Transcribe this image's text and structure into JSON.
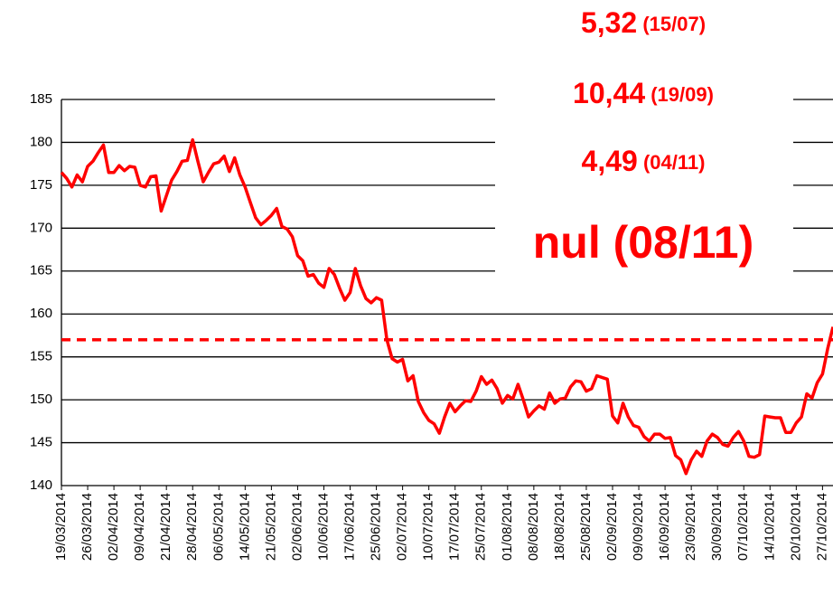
{
  "chart_data": {
    "type": "line",
    "categories": [
      "19/03/2014",
      null,
      null,
      null,
      null,
      "26/03/2014",
      null,
      null,
      null,
      null,
      "02/04/2014",
      null,
      null,
      null,
      null,
      "09/04/2014",
      null,
      null,
      null,
      null,
      "21/04/2014",
      null,
      null,
      null,
      null,
      "28/04/2014",
      null,
      null,
      null,
      null,
      "06/05/2014",
      null,
      null,
      null,
      null,
      "14/05/2014",
      null,
      null,
      null,
      null,
      "21/05/2014",
      null,
      null,
      null,
      null,
      "02/06/2014",
      null,
      null,
      null,
      null,
      "10/06/2014",
      null,
      null,
      null,
      null,
      "17/06/2014",
      null,
      null,
      null,
      null,
      "25/06/2014",
      null,
      null,
      null,
      null,
      "02/07/2014",
      null,
      null,
      null,
      null,
      "10/07/2014",
      null,
      null,
      null,
      null,
      "17/07/2014",
      null,
      null,
      null,
      null,
      "25/07/2014",
      null,
      null,
      null,
      null,
      "01/08/2014",
      null,
      null,
      null,
      null,
      "08/08/2014",
      null,
      null,
      null,
      null,
      "18/08/2014",
      null,
      null,
      null,
      null,
      "25/08/2014",
      null,
      null,
      null,
      null,
      "02/09/2014",
      null,
      null,
      null,
      null,
      "09/09/2014",
      null,
      null,
      null,
      null,
      "16/09/2014",
      null,
      null,
      null,
      null,
      "23/09/2014",
      null,
      null,
      null,
      null,
      "30/09/2014",
      null,
      null,
      null,
      null,
      "07/10/2014",
      null,
      null,
      null,
      null,
      "14/10/2014",
      null,
      null,
      null,
      null,
      "20/10/2014",
      null,
      null,
      null,
      null,
      "27/10/2014",
      null,
      null
    ],
    "series": [
      {
        "color": "#ff0000",
        "values": [
          176.5,
          175.8,
          174.8,
          176.2,
          175.4,
          177.2,
          177.8,
          178.8,
          179.7,
          176.5,
          176.5,
          177.3,
          176.7,
          177.2,
          177.1,
          175.0,
          174.8,
          176.0,
          176.1,
          172.0,
          173.8,
          175.6,
          176.6,
          177.8,
          177.9,
          180.3,
          177.8,
          175.4,
          176.5,
          177.5,
          177.7,
          178.4,
          176.6,
          178.2,
          176.2,
          174.8,
          173.0,
          171.2,
          170.4,
          170.9,
          171.5,
          172.3,
          170.2,
          169.9,
          169.0,
          166.8,
          166.2,
          164.4,
          164.6,
          163.6,
          163.1,
          165.3,
          164.6,
          163.0,
          161.6,
          162.5,
          165.3,
          163.3,
          161.8,
          161.3,
          161.9,
          161.6,
          157.0,
          154.8,
          154.4,
          154.7,
          152.2,
          152.8,
          149.8,
          148.5,
          147.6,
          147.2,
          146.1,
          148.0,
          149.6,
          148.6,
          149.3,
          149.9,
          149.8,
          151.0,
          152.7,
          151.8,
          152.3,
          151.3,
          149.6,
          150.5,
          150.1,
          151.8,
          150.0,
          148.0,
          148.7,
          149.3,
          148.9,
          150.8,
          149.6,
          150.1,
          150.2,
          151.5,
          152.2,
          152.1,
          151.0,
          151.3,
          152.8,
          152.6,
          152.4,
          148.1,
          147.3,
          149.6,
          148.0,
          147.0,
          146.8,
          145.7,
          145.2,
          146.0,
          146.0,
          145.5,
          145.6,
          143.5,
          143.0,
          141.4,
          143.0,
          144.0,
          143.4,
          145.2,
          146.0,
          145.6,
          144.8,
          144.6,
          145.6,
          146.3,
          145.2,
          143.4,
          143.3,
          143.6,
          148.1,
          148.0,
          147.9,
          147.9,
          146.2,
          146.2,
          147.3,
          148.0,
          150.7,
          150.2,
          152.0,
          153.0,
          156.0,
          158.5
        ]
      }
    ],
    "ylim": [
      140,
      185
    ],
    "yticks": [
      140,
      145,
      150,
      155,
      160,
      165,
      170,
      175,
      180,
      185
    ],
    "grid": true,
    "reference_line": {
      "value": 157,
      "color": "#ff0000"
    },
    "annotations": [
      {
        "value": "5,32",
        "date": "(15/07)"
      },
      {
        "value": "10,44",
        "date": "(19/09)"
      },
      {
        "value": "4,49",
        "date": "(04/11)"
      },
      {
        "value": "nul (08/11)"
      }
    ]
  }
}
